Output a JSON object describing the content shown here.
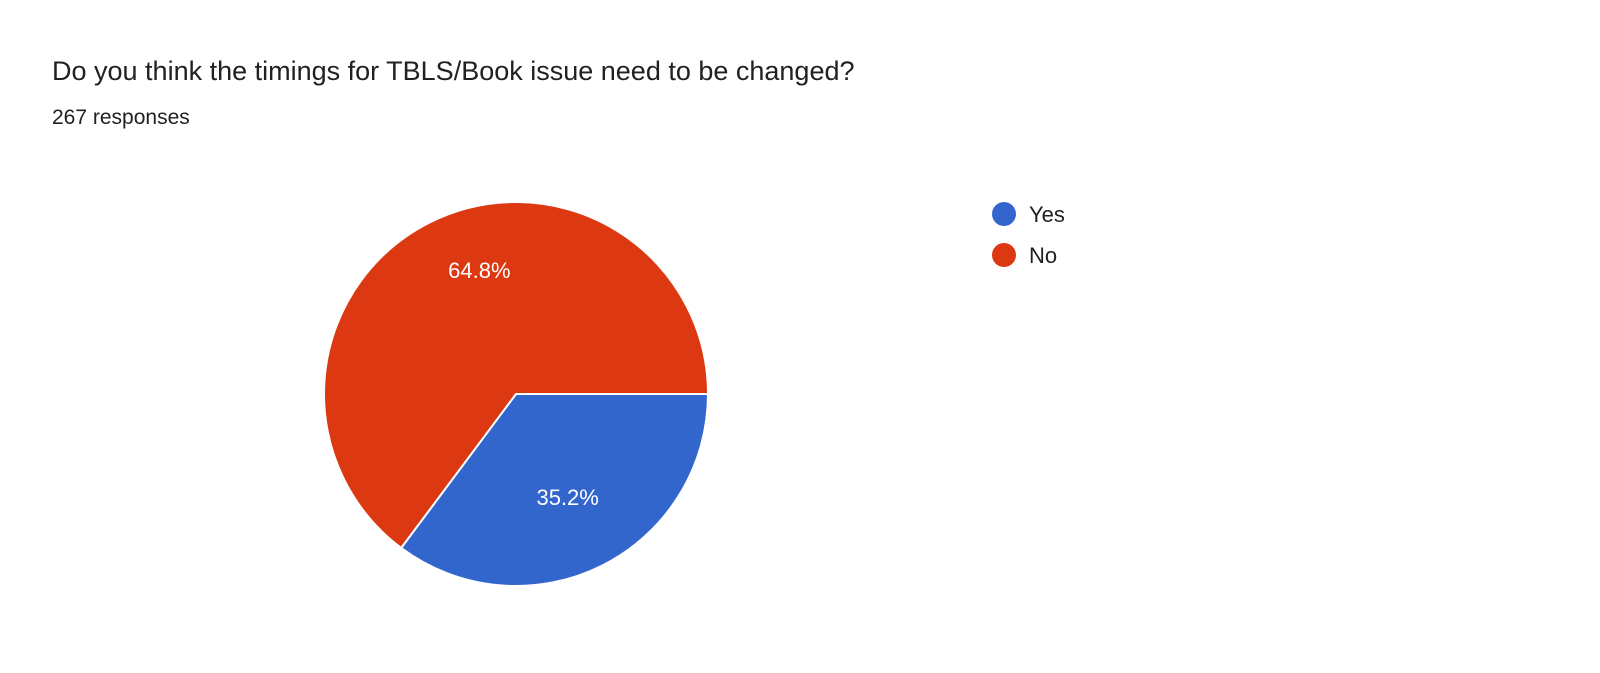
{
  "title": "Do you think the timings for TBLS/Book issue need to be changed?",
  "subtitle": "267 responses",
  "chart_data": {
    "type": "pie",
    "categories": [
      "Yes",
      "No"
    ],
    "values": [
      35.2,
      64.8
    ],
    "labels": [
      "35.2%",
      "64.8%"
    ],
    "colors": [
      "#3366cc",
      "#dc3912"
    ],
    "legend_position": "right",
    "start": "3 o'clock, clockwise"
  }
}
